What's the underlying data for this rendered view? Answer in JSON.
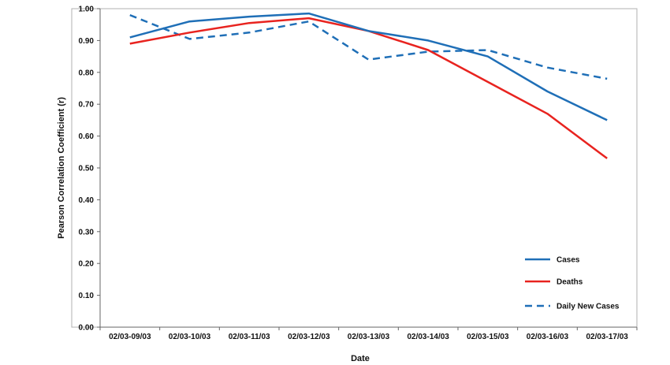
{
  "chart_data": {
    "type": "line",
    "xlabel": "Date",
    "ylabel": "Pearson Correlation Coefficient (r)",
    "ylim": [
      0,
      1
    ],
    "yticks": [
      "0.00",
      "0.10",
      "0.20",
      "0.30",
      "0.40",
      "0.50",
      "0.60",
      "0.70",
      "0.80",
      "0.90",
      "1.00"
    ],
    "categories": [
      "02/03-09/03",
      "02/03-10/03",
      "02/03-11/03",
      "02/03-12/03",
      "02/03-13/03",
      "02/03-14/03",
      "02/03-15/03",
      "02/03-16/03",
      "02/03-17/03"
    ],
    "grid": false,
    "legend_position": "bottom-right",
    "series": [
      {
        "name": "Cases",
        "color": "#1f6fb7",
        "style": "solid",
        "values": [
          0.91,
          0.96,
          0.975,
          0.985,
          0.93,
          0.9,
          0.85,
          0.74,
          0.65
        ]
      },
      {
        "name": "Deaths",
        "color": "#e8231f",
        "style": "solid",
        "values": [
          0.89,
          0.925,
          0.955,
          0.97,
          0.93,
          0.87,
          0.77,
          0.67,
          0.53
        ]
      },
      {
        "name": "Daily New Cases",
        "color": "#1f6fb7",
        "style": "dashed",
        "values": [
          0.98,
          0.905,
          0.925,
          0.96,
          0.84,
          0.865,
          0.87,
          0.815,
          0.78
        ]
      }
    ]
  }
}
